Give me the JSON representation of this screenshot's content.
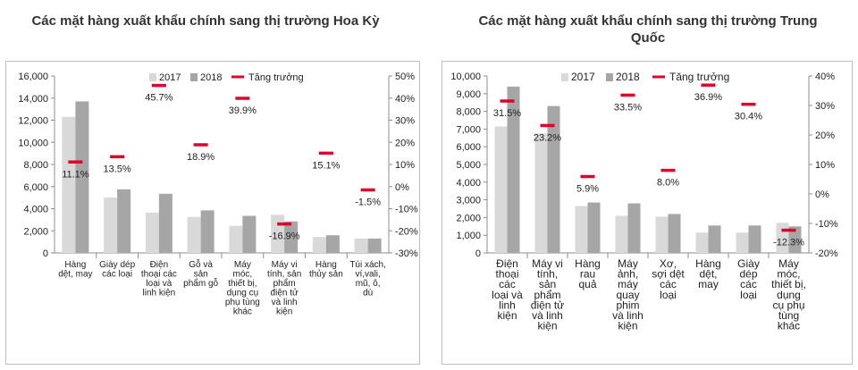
{
  "colors": {
    "series_2017": "#d9d9d9",
    "series_2018": "#a6a6a6",
    "growth_marker": "#e0002a",
    "axis": "#8c8c8c"
  },
  "chart_data": [
    {
      "type": "bar",
      "title": "Các mặt hàng xuất khẩu chính sang thị trường Hoa Kỳ",
      "categories": [
        [
          "Hàng",
          "dệt, may"
        ],
        [
          "Giày dép",
          "các loại"
        ],
        [
          "Điện",
          "thoại các",
          "loại và",
          "linh kiện"
        ],
        [
          "Gỗ và",
          "sản",
          "phẩm gỗ"
        ],
        [
          "Máy",
          "móc,",
          "thiết bị,",
          "dụng cụ",
          "phụ tùng",
          "khác"
        ],
        [
          "Máy vi",
          "tính, sản",
          "phẩm",
          "điện tử",
          "và linh",
          "kiện"
        ],
        [
          "Hàng",
          "thủy sản"
        ],
        [
          "Túi xách,",
          "ví,vali,",
          "mũ, ô,",
          "dù"
        ]
      ],
      "series": [
        {
          "name": "2017",
          "values": [
            12300,
            5000,
            3650,
            3250,
            2450,
            3450,
            1450,
            1300
          ]
        },
        {
          "name": "2018",
          "values": [
            13700,
            5750,
            5350,
            3850,
            3350,
            2850,
            1600,
            1300
          ]
        }
      ],
      "growth": {
        "name": "Tăng trưởng",
        "values": [
          11.1,
          13.5,
          45.7,
          18.9,
          39.9,
          -16.9,
          15.1,
          -1.5
        ],
        "labels": [
          "11.1%",
          "13.5%",
          "45.7%",
          "18.9%",
          "39.9%",
          "-16.9%",
          "15.1%",
          "-1.5%"
        ]
      },
      "legend": [
        "2017",
        "2018",
        "Tăng trưởng"
      ],
      "legend_position": "top",
      "ylim": [
        0,
        16000
      ],
      "yticks": [
        "0",
        "2,000",
        "4,000",
        "6,000",
        "8,000",
        "10,000",
        "12,000",
        "14,000",
        "16,000"
      ],
      "y2lim": [
        -30,
        50
      ],
      "y2ticks": [
        "-30%",
        "-20%",
        "-10%",
        "0%",
        "10%",
        "20%",
        "30%",
        "40%",
        "50%"
      ]
    },
    {
      "type": "bar",
      "title": "Các mặt hàng xuất khẩu chính sang thị trường Trung Quốc",
      "title_lines": [
        "Các mặt hàng xuất khẩu chính sang thị trường Trung",
        "Quốc"
      ],
      "categories": [
        [
          "Điện",
          "thoại",
          "các",
          "loại và",
          "linh",
          "kiện"
        ],
        [
          "Máy vi",
          "tính,",
          "sản",
          "phẩm",
          "điện tử",
          "và linh",
          "kiện"
        ],
        [
          "Hàng",
          "rau",
          "quả"
        ],
        [
          "Máy",
          "ảnh,",
          "máy",
          "quay",
          "phim",
          "và linh",
          "kiện"
        ],
        [
          "Xơ,",
          "sợi dệt",
          "các",
          "loại"
        ],
        [
          "Hàng",
          "dệt,",
          "may"
        ],
        [
          "Giày",
          "dép",
          "các",
          "loại"
        ],
        [
          "Máy",
          "móc,",
          "thiết bị,",
          "dụng",
          "cụ phụ",
          "tùng",
          "khác"
        ]
      ],
      "series": [
        {
          "name": "2017",
          "values": [
            7150,
            6750,
            2650,
            2100,
            2050,
            1150,
            1150,
            1700
          ]
        },
        {
          "name": "2018",
          "values": [
            9400,
            8300,
            2850,
            2800,
            2200,
            1550,
            1550,
            1500
          ]
        }
      ],
      "growth": {
        "name": "Tăng trưởng",
        "values": [
          31.5,
          23.2,
          5.9,
          33.5,
          8.0,
          36.9,
          30.4,
          -12.3
        ],
        "labels": [
          "31.5%",
          "23.2%",
          "5.9%",
          "33.5%",
          "8.0%",
          "36.9%",
          "30.4%",
          "-12.3%"
        ]
      },
      "legend": [
        "2017",
        "2018",
        "Tăng trưởng"
      ],
      "legend_position": "top",
      "ylim": [
        0,
        10000
      ],
      "yticks": [
        "0",
        "1,000",
        "2,000",
        "3,000",
        "4,000",
        "5,000",
        "6,000",
        "7,000",
        "8,000",
        "9,000",
        "10,000"
      ],
      "y2lim": [
        -20,
        40
      ],
      "y2ticks": [
        "-20%",
        "-10%",
        "0%",
        "10%",
        "20%",
        "30%",
        "40%"
      ]
    }
  ]
}
